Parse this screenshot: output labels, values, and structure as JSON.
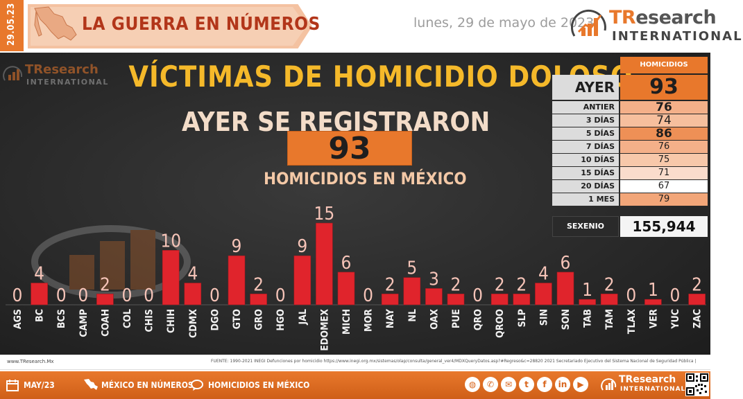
{
  "header": {
    "date_tab": "29.05.23",
    "banner_title": "LA GUERRA EN NÚMEROS",
    "date_text": "lunes, 29 de mayo de 2023",
    "brand_tr": "TR",
    "brand_research": "esearch",
    "brand_international": "INTERNATIONAL"
  },
  "main": {
    "title": "VÍCTIMAS DE HOMICIDIO DOLOSO",
    "subtitle": "AYER SE REGISTRARON",
    "total": "93",
    "caption": "HOMICIDIOS EN MÉXICO"
  },
  "stats": {
    "header": "HOMICIDIOS",
    "ayer_label": "AYER",
    "ayer_value": "93",
    "rows": [
      {
        "label": "ANTIER",
        "value": "76",
        "color": "#f4b089"
      },
      {
        "label": "3 DÍAS",
        "value": "74",
        "color": "#f6bf9d"
      },
      {
        "label": "5 DÍAS",
        "value": "86",
        "color": "#ee9056"
      },
      {
        "label": "7 DÍAS",
        "value": "76",
        "color": "#f4b089"
      },
      {
        "label": "10 DÍAS",
        "value": "75",
        "color": "#f7c8aa"
      },
      {
        "label": "15 DÍAS",
        "value": "71",
        "color": "#fadccc"
      },
      {
        "label": "20 DÍAS",
        "value": "67",
        "color": "#ffffff"
      },
      {
        "label": "1 MES",
        "value": "79",
        "color": "#f2a679"
      }
    ],
    "sexenio_label": "SEXENIO",
    "sexenio_value": "155,944"
  },
  "chart_data": {
    "type": "bar",
    "categories": [
      "AGS",
      "BC",
      "BCS",
      "CAMP",
      "COAH",
      "COL",
      "CHIS",
      "CHIH",
      "CDMX",
      "DGO",
      "GTO",
      "GRO",
      "HGO",
      "JAL",
      "EDOMEX",
      "MICH",
      "MOR",
      "NAY",
      "NL",
      "OAX",
      "PUE",
      "QRO",
      "QROO",
      "SLP",
      "SIN",
      "SON",
      "TAB",
      "TAM",
      "TLAX",
      "VER",
      "YUC",
      "ZAC"
    ],
    "values": [
      0,
      4,
      0,
      0,
      2,
      0,
      0,
      10,
      4,
      0,
      9,
      2,
      0,
      9,
      15,
      6,
      0,
      2,
      5,
      3,
      2,
      0,
      2,
      2,
      4,
      6,
      1,
      2,
      0,
      1,
      0,
      2
    ],
    "ylim": [
      0,
      15
    ]
  },
  "source": {
    "site": "www.TResearch.Mx",
    "text": "FUENTE:  1990-2021 INEGI Defunciones  por homicidio  https://www.inegi.org.mx/sistemas/olap/consulta/general_ver4/MDXQueryDatos.asp?#Regreso&c=28820    2021 Secretariado  Ejecutivo del Sistema Nacional de Seguridad Pública  |"
  },
  "footer": {
    "item1": "MAY/23",
    "item2": "MÉXICO EN NÚMEROS",
    "item3": "HOMICIDIOS  EN MÉXICO",
    "brand_tr": "TResearch",
    "brand_international": "INTERNATIONAL",
    "social_icons": [
      "globe-icon",
      "whatsapp-icon",
      "email-icon",
      "twitter-icon",
      "facebook-icon",
      "linkedin-icon",
      "youtube-icon"
    ]
  },
  "colors": {
    "accent": "#e8782c",
    "bar": "#e0242c",
    "title_yellow": "#f5b92a",
    "label_pink": "#f6c4b8"
  }
}
